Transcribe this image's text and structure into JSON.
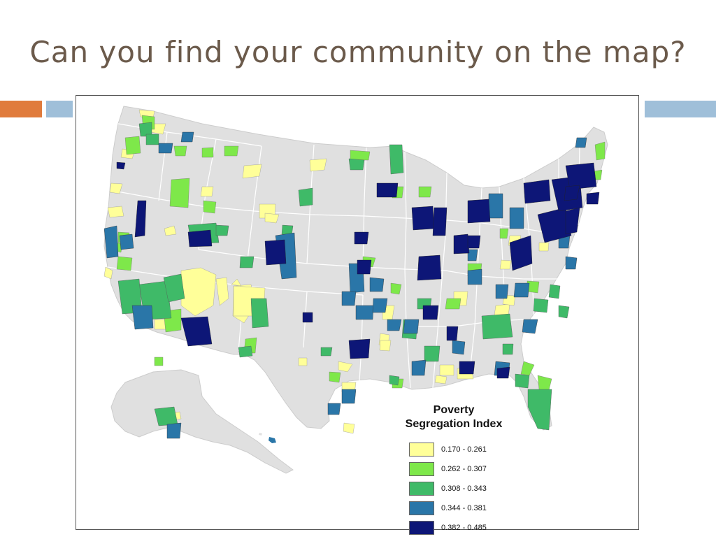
{
  "slide": {
    "title": "Can you find your community on the map?"
  },
  "colors": {
    "title": "#6b5a4b",
    "accent_orange": "#e07b3c",
    "accent_blue": "#9fbfd9",
    "land": "#e0e0e0",
    "border": "#ffffff"
  },
  "legend": {
    "title_line1": "Poverty",
    "title_line2": "Segregation Index",
    "items": [
      {
        "label": "0.170 - 0.261",
        "color": "#ffff99"
      },
      {
        "label": "0.262 - 0.307",
        "color": "#7ee84a"
      },
      {
        "label": "0.308 - 0.343",
        "color": "#3fba68"
      },
      {
        "label": "0.344 - 0.381",
        "color": "#2a76a8"
      },
      {
        "label": "0.382 - 0.485",
        "color": "#0d1677"
      }
    ]
  }
}
